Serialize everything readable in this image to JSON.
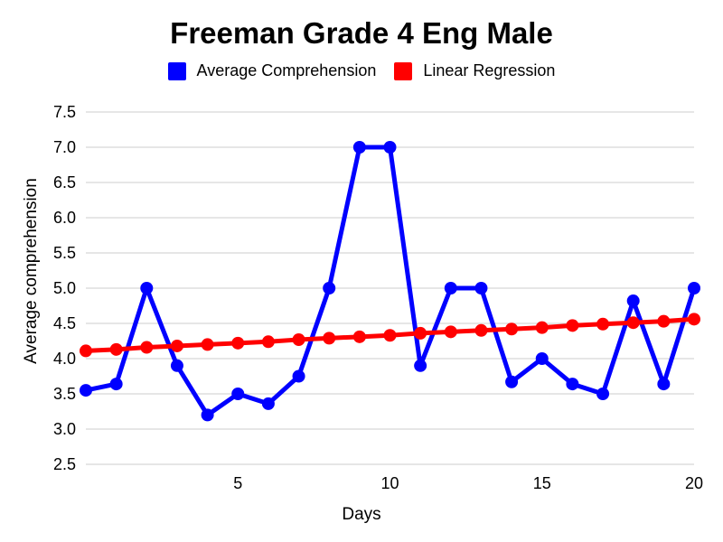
{
  "chart_data": {
    "type": "line",
    "title": "Freeman Grade 4 Eng Male",
    "xlabel": "Days",
    "ylabel": "Average comprehension",
    "xlim": [
      0,
      20
    ],
    "ylim": [
      2.5,
      7.5
    ],
    "x_ticks": [
      5,
      10,
      15,
      20
    ],
    "y_ticks": [
      "2.5",
      "3.0",
      "3.5",
      "4.0",
      "4.5",
      "5.0",
      "5.5",
      "6.0",
      "6.5",
      "7.0",
      "7.5"
    ],
    "grid": true,
    "legend_position": "top",
    "x": [
      0,
      1,
      2,
      3,
      4,
      5,
      6,
      7,
      8,
      9,
      10,
      11,
      12,
      13,
      14,
      15,
      16,
      17,
      18,
      19,
      20
    ],
    "series": [
      {
        "name": "Average Comprehension",
        "color": "#0000ff",
        "values": [
          3.55,
          3.64,
          5.0,
          3.9,
          3.2,
          3.5,
          3.36,
          3.75,
          5.0,
          7.0,
          7.0,
          3.9,
          5.0,
          5.0,
          3.67,
          4.0,
          3.64,
          3.5,
          4.82,
          3.64,
          5.0
        ]
      },
      {
        "name": "Linear Regression",
        "color": "#ff0000",
        "values": [
          4.11,
          4.13,
          4.16,
          4.18,
          4.2,
          4.22,
          4.24,
          4.27,
          4.29,
          4.31,
          4.33,
          4.36,
          4.38,
          4.4,
          4.42,
          4.44,
          4.47,
          4.49,
          4.51,
          4.53,
          4.56
        ]
      }
    ]
  }
}
